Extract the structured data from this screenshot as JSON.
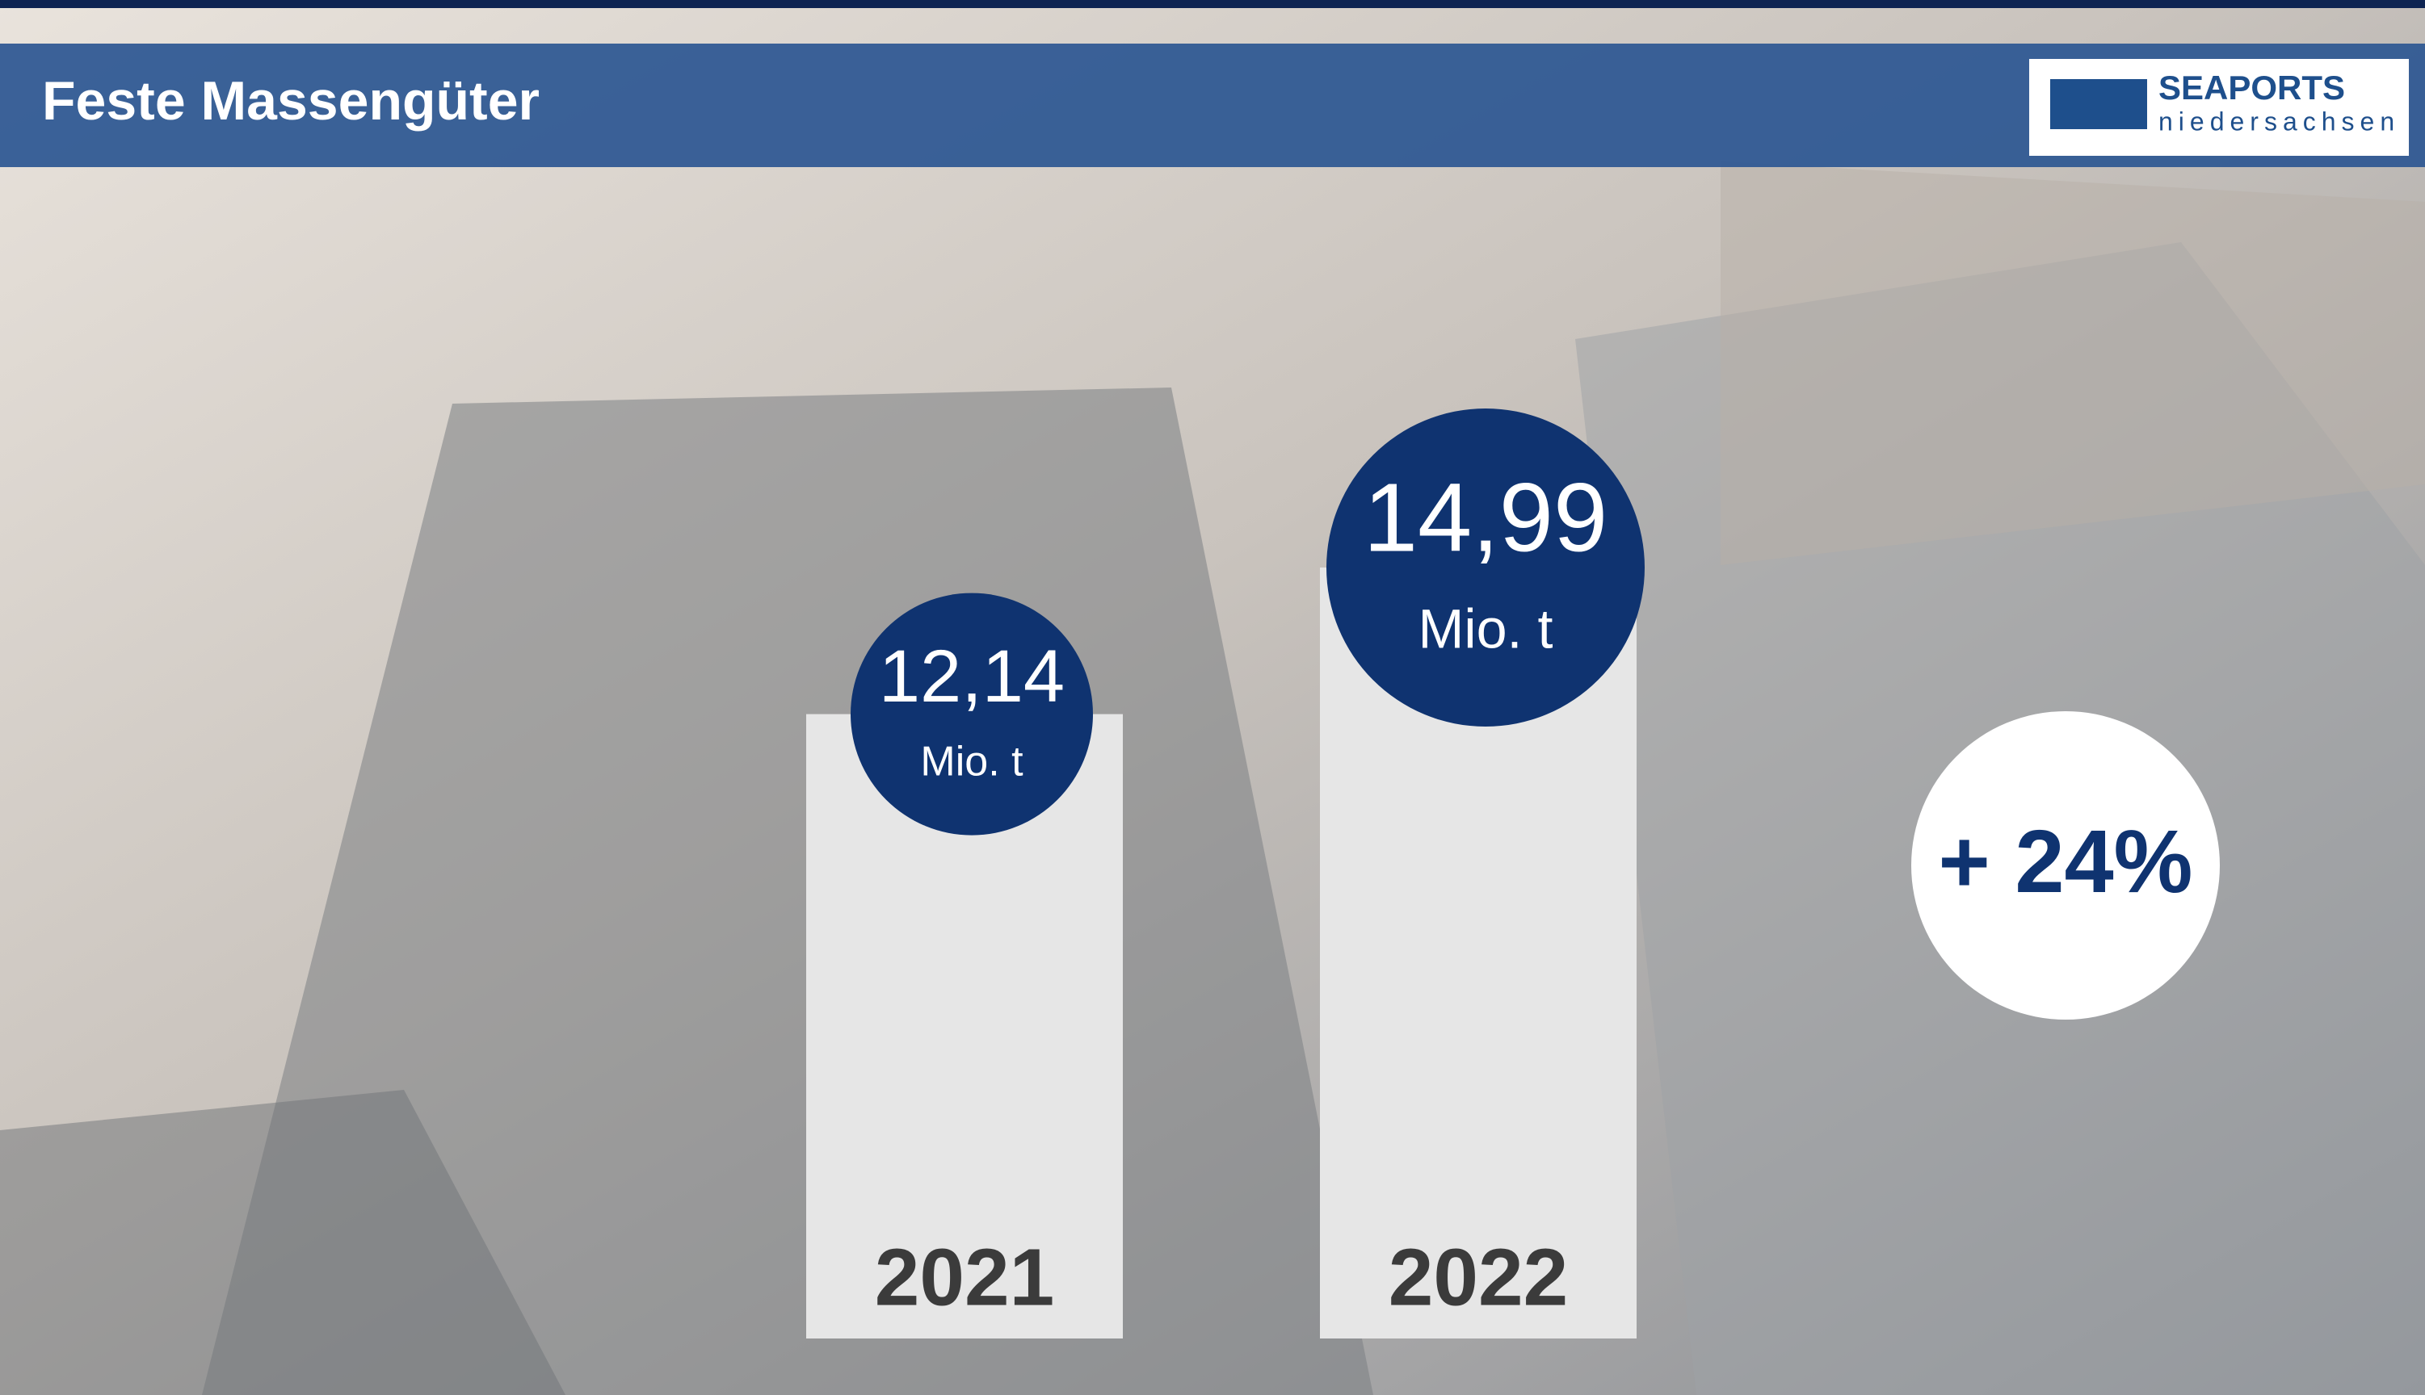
{
  "chart_data": {
    "type": "bar",
    "title": "Feste Massengüter",
    "categories": [
      "2021",
      "2022"
    ],
    "values": [
      12.14,
      14.99
    ],
    "value_labels": [
      "12,14",
      "14,99"
    ],
    "value_unit": "Mio. t",
    "color": "#e6e6e6",
    "label_color": "#0f3370",
    "annotation": "+ 24%",
    "logo": {
      "name": "SEAPORTS",
      "subtitle": "niedersachsen"
    }
  }
}
